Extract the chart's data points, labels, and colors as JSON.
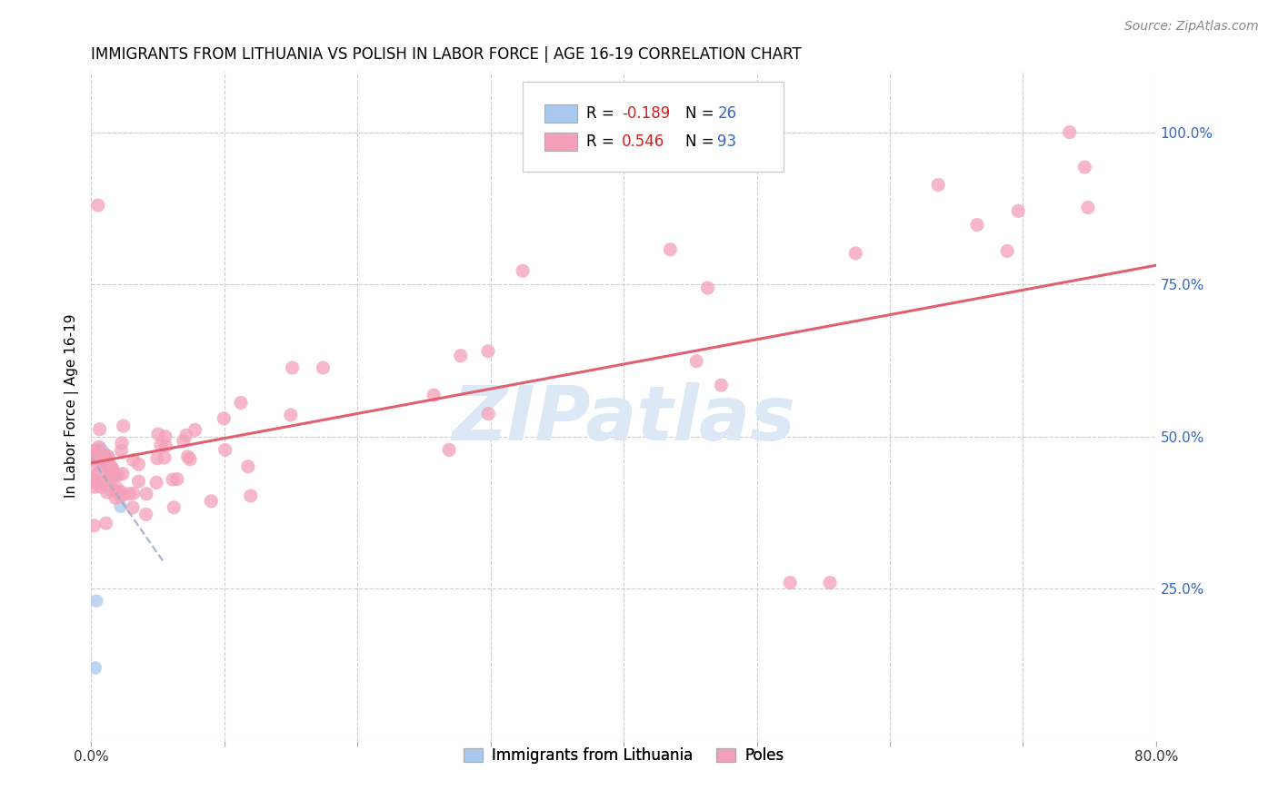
{
  "title": "IMMIGRANTS FROM LITHUANIA VS POLISH IN LABOR FORCE | AGE 16-19 CORRELATION CHART",
  "source": "Source: ZipAtlas.com",
  "ylabel": "In Labor Force | Age 16-19",
  "xlim": [
    0.0,
    0.8
  ],
  "ylim": [
    0.0,
    1.1
  ],
  "color_blue": "#a8c8f0",
  "color_pink": "#f4a0b8",
  "trendline_blue_color": "#99aacc",
  "trendline_pink_color": "#e06070",
  "grid_color": "#cccccc",
  "background_color": "#ffffff",
  "watermark": "ZIPatlas",
  "watermark_color": "#dce8f5",
  "blue_r": -0.189,
  "blue_n": 26,
  "pink_r": 0.546,
  "pink_n": 93,
  "r_color": "#cc2222",
  "n_color": "#3366cc",
  "right_tick_color": "#3366cc",
  "source_color": "#888888"
}
